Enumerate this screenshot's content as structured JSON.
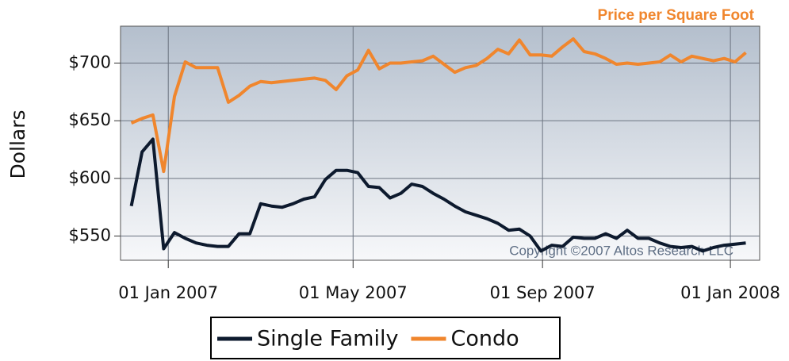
{
  "chart_data": {
    "type": "line",
    "title": "Price per Square Foot",
    "ylabel": "Dollars",
    "annotation": "Copyright ©2007 Altos Research LLC",
    "x": [
      "2006-12-08",
      "2006-12-15",
      "2006-12-22",
      "2006-12-29",
      "2007-01-05",
      "2007-01-12",
      "2007-01-19",
      "2007-01-26",
      "2007-02-02",
      "2007-02-09",
      "2007-02-16",
      "2007-02-23",
      "2007-03-02",
      "2007-03-09",
      "2007-03-16",
      "2007-03-23",
      "2007-03-30",
      "2007-04-06",
      "2007-04-13",
      "2007-04-20",
      "2007-04-27",
      "2007-05-04",
      "2007-05-11",
      "2007-05-18",
      "2007-05-25",
      "2007-06-01",
      "2007-06-08",
      "2007-06-15",
      "2007-06-22",
      "2007-06-29",
      "2007-07-06",
      "2007-07-13",
      "2007-07-20",
      "2007-07-27",
      "2007-08-03",
      "2007-08-10",
      "2007-08-17",
      "2007-08-24",
      "2007-08-31",
      "2007-09-07",
      "2007-09-14",
      "2007-09-21",
      "2007-09-28",
      "2007-10-05",
      "2007-10-12",
      "2007-10-19",
      "2007-10-26",
      "2007-11-02",
      "2007-11-09",
      "2007-11-16",
      "2007-11-23",
      "2007-11-30",
      "2007-12-07",
      "2007-12-14",
      "2007-12-21",
      "2007-12-28",
      "2008-01-04",
      "2008-01-11"
    ],
    "series": [
      {
        "name": "Single Family",
        "color": "#0d1a2e",
        "values": [
          576,
          623,
          634,
          539,
          553,
          548,
          544,
          542,
          541,
          541,
          552,
          552,
          578,
          576,
          575,
          578,
          582,
          584,
          599,
          607,
          607,
          605,
          593,
          592,
          583,
          587,
          595,
          593,
          587,
          582,
          576,
          571,
          568,
          565,
          561,
          555,
          556,
          550,
          537,
          542,
          541,
          549,
          548,
          548,
          552,
          548,
          555,
          548,
          548,
          544,
          541,
          540,
          541,
          537,
          540,
          542,
          543,
          544
        ]
      },
      {
        "name": "Condo",
        "color": "#f0862d",
        "values": [
          648,
          652,
          655,
          606,
          671,
          701,
          696,
          696,
          696,
          666,
          672,
          680,
          684,
          683,
          684,
          685,
          686,
          687,
          685,
          677,
          689,
          694,
          711,
          695,
          700,
          700,
          701,
          702,
          706,
          699,
          692,
          696,
          698,
          704,
          712,
          708,
          720,
          707,
          707,
          706,
          714,
          721,
          710,
          708,
          704,
          699,
          700,
          699,
          700,
          701,
          707,
          701,
          706,
          704,
          702,
          704,
          701,
          709
        ]
      }
    ],
    "xlim": [
      "2006-12-01",
      "2008-01-20"
    ],
    "xticks": [
      {
        "value": "2007-01-01",
        "label": "01 Jan 2007"
      },
      {
        "value": "2007-05-01",
        "label": "01 May 2007"
      },
      {
        "value": "2007-09-01",
        "label": "01 Sep 2007"
      },
      {
        "value": "2008-01-01",
        "label": "01 Jan 2008"
      }
    ],
    "ylim": [
      529,
      732
    ],
    "yticks": [
      {
        "value": 550,
        "label": "$550"
      },
      {
        "value": 600,
        "label": "$600"
      },
      {
        "value": 650,
        "label": "$650"
      },
      {
        "value": 700,
        "label": "$700"
      }
    ],
    "grid": true,
    "legend": "bottom"
  }
}
